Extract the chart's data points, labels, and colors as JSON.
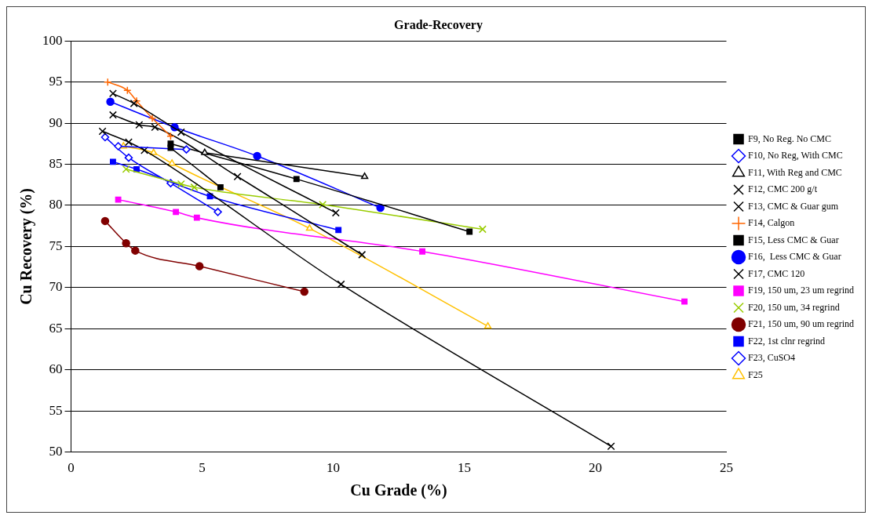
{
  "chart_data": {
    "type": "line",
    "title": "Grade-Recovery",
    "xlabel": "Cu Grade (%)",
    "ylabel": "Cu Recovery (%)",
    "xlim": [
      0,
      25
    ],
    "xticks": [
      0,
      5,
      10,
      15,
      20,
      25
    ],
    "ylim": [
      50,
      100
    ],
    "yticks": [
      50,
      55,
      60,
      65,
      70,
      75,
      80,
      85,
      90,
      95,
      100
    ],
    "grid": "y",
    "legend": "right",
    "line_style": "solid",
    "series": [
      {
        "name": "F9, No Reg. No CMC",
        "color": "#000000",
        "marker": "square",
        "x": [
          3.8,
          5.7
        ],
        "values": [
          87,
          82.2
        ]
      },
      {
        "name": "F10, No Reg, With CMC",
        "color": "#0000ff",
        "marker": "diamond",
        "x": [
          1.8,
          4.4
        ],
        "values": [
          87.2,
          86.8
        ]
      },
      {
        "name": "F11, With Reg and CMC",
        "color": "#000000",
        "marker": "triangle",
        "x": [
          5.1,
          11.2
        ],
        "values": [
          86.4,
          83.5
        ]
      },
      {
        "name": "F12, CMC 200 g/t",
        "color": "#000000",
        "marker": "cross",
        "x": [
          1.6,
          2.4,
          4.2,
          10.1
        ],
        "values": [
          93.6,
          92.4,
          88.9,
          79.1
        ]
      },
      {
        "name": "F13, CMC & Guar gum",
        "color": "#000000",
        "marker": "cross",
        "x": [
          1.2,
          2.2,
          2.8,
          10.3,
          20.6
        ],
        "values": [
          89,
          87.7,
          86.7,
          70.4,
          50.7
        ]
      },
      {
        "name": "F14, Calgon",
        "color": "#ff6600",
        "marker": "plus",
        "x": [
          1.4,
          2.15,
          2.5,
          3.1,
          3.8
        ],
        "values": [
          95,
          94,
          92.7,
          90.6,
          88.4
        ]
      },
      {
        "name": "F15, Less CMC & Guar",
        "color": "#000000",
        "marker": "square",
        "x": [
          3.8,
          8.6,
          15.2
        ],
        "values": [
          87.5,
          83.2,
          76.8
        ]
      },
      {
        "name": "F16,  Less CMC & Guar",
        "color": "#0000ff",
        "marker": "circle",
        "x": [
          1.5,
          3.95,
          7.1,
          11.8
        ],
        "values": [
          92.6,
          89.5,
          86,
          79.7
        ]
      },
      {
        "name": "F17, CMC 120",
        "color": "#000000",
        "marker": "cross",
        "x": [
          1.6,
          2.6,
          3.2,
          6.35,
          11.1
        ],
        "values": [
          91,
          89.8,
          89.5,
          83.5,
          74
        ]
      },
      {
        "name": "F19, 150 um, 23 um regrind",
        "color": "#ff00ff",
        "marker": "square",
        "x": [
          1.8,
          4,
          4.8,
          13.4,
          23.4
        ],
        "values": [
          80.7,
          79.2,
          78.5,
          74.4,
          68.3
        ]
      },
      {
        "name": "F20, 150 um, 34 regrind",
        "color": "#99cc00",
        "marker": "cross",
        "x": [
          2.1,
          4.2,
          4.7,
          9.6,
          15.7
        ],
        "values": [
          84.4,
          82.6,
          82.2,
          80.1,
          77.1
        ]
      },
      {
        "name": "F21, 150 um, 90 um regrind",
        "color": "#800000",
        "marker": "circle",
        "x": [
          1.3,
          2.1,
          2.45,
          4.9,
          8.9
        ],
        "values": [
          78.1,
          75.4,
          74.5,
          72.6,
          69.5
        ]
      },
      {
        "name": "F22, 1st clnr regrind",
        "color": "#0000ff",
        "marker": "square",
        "x": [
          1.6,
          2.5,
          5.3,
          10.2
        ],
        "values": [
          85.3,
          84.4,
          81.1,
          77
        ]
      },
      {
        "name": "F23, CuSO4",
        "color": "#0000ff",
        "marker": "diamond",
        "x": [
          1.3,
          2.2,
          3.8,
          5.6
        ],
        "values": [
          88.3,
          85.8,
          82.7,
          79.2
        ]
      },
      {
        "name": "F25",
        "color": "#ffc000",
        "marker": "triangle",
        "x": [
          2,
          3.15,
          3.85,
          9.1,
          15.9
        ],
        "values": [
          87.2,
          86.4,
          85.1,
          77.2,
          65.3
        ]
      }
    ]
  }
}
